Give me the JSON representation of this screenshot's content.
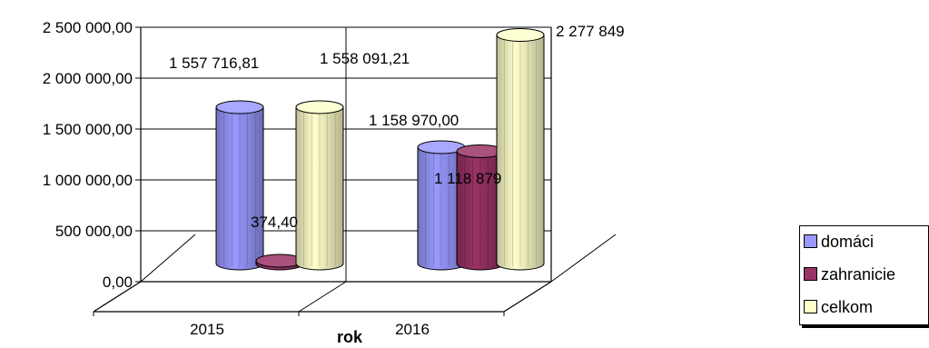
{
  "chart_data": {
    "type": "bar",
    "style": "3d-cylinder",
    "title": "",
    "xlabel": "rok",
    "ylabel": "",
    "categories": [
      "2015",
      "2016"
    ],
    "ylim": [
      0,
      2500000
    ],
    "yticks": [
      0,
      500000,
      1000000,
      1500000,
      2000000,
      2500000
    ],
    "ytick_labels": [
      "0,00",
      "500 000,00",
      "1 000 000,00",
      "1 500 000,00",
      "2 000 000,00",
      "2 500 000,00"
    ],
    "grid": true,
    "legend_position": "right",
    "series": [
      {
        "name": "domáci",
        "color": "#9999ff",
        "values": [
          1557716.81,
          1158970.0
        ],
        "labels": [
          "1 557 716,81",
          "1 158 970,00"
        ]
      },
      {
        "name": "zahranicie",
        "color": "#993366",
        "values": [
          374.4,
          1118879
        ],
        "labels": [
          "374,40",
          "1 118 879"
        ]
      },
      {
        "name": "celkom",
        "color": "#ffffcc",
        "values": [
          1558091.21,
          2277849
        ],
        "labels": [
          "1 558 091,21",
          "2 277 849"
        ]
      }
    ]
  }
}
